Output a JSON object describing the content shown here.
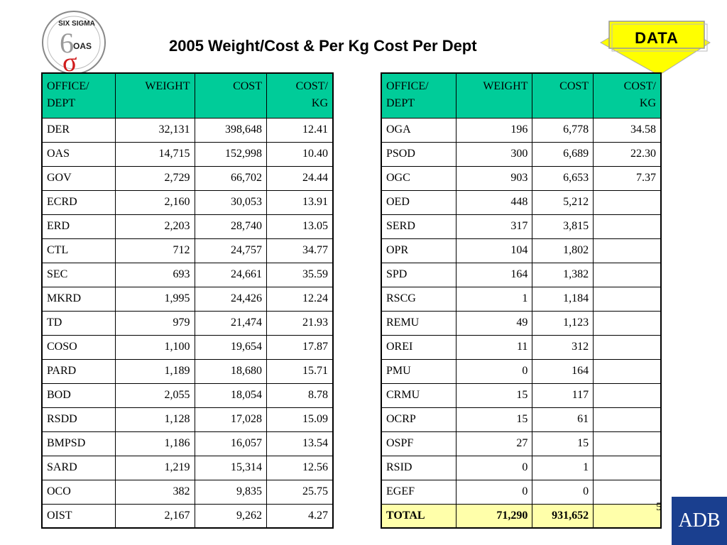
{
  "logo": {
    "top_text": "SIX SIGMA",
    "bottom_text": "OAS"
  },
  "title": "2005 Weight/Cost & Per Kg Cost Per Dept",
  "badge": {
    "label": "DATA",
    "color": "#ffff00"
  },
  "table_header": {
    "office_line1": "OFFICE/",
    "office_line2": "DEPT",
    "weight": "WEIGHT",
    "cost": "COST",
    "costkg_line1": "COST/",
    "costkg_line2": "KG"
  },
  "colors": {
    "header_bg": "#00cc99",
    "total_bg": "#ffffaa",
    "adb_bg": "#1a3f8f"
  },
  "left_table": [
    [
      "DER",
      "32,131",
      "398,648",
      "12.41"
    ],
    [
      "OAS",
      "14,715",
      "152,998",
      "10.40"
    ],
    [
      "GOV",
      "2,729",
      "66,702",
      "24.44"
    ],
    [
      "ECRD",
      "2,160",
      "30,053",
      "13.91"
    ],
    [
      "ERD",
      "2,203",
      "28,740",
      "13.05"
    ],
    [
      "CTL",
      "712",
      "24,757",
      "34.77"
    ],
    [
      "SEC",
      "693",
      "24,661",
      "35.59"
    ],
    [
      "MKRD",
      "1,995",
      "24,426",
      "12.24"
    ],
    [
      "TD",
      "979",
      "21,474",
      "21.93"
    ],
    [
      "COSO",
      "1,100",
      "19,654",
      "17.87"
    ],
    [
      "PARD",
      "1,189",
      "18,680",
      "15.71"
    ],
    [
      "BOD",
      "2,055",
      "18,054",
      "8.78"
    ],
    [
      "RSDD",
      "1,128",
      "17,028",
      "15.09"
    ],
    [
      "BMPSD",
      "1,186",
      "16,057",
      "13.54"
    ],
    [
      "SARD",
      "1,219",
      "15,314",
      "12.56"
    ],
    [
      "OCO",
      "382",
      "9,835",
      "25.75"
    ],
    [
      "OIST",
      "2,167",
      "9,262",
      "4.27"
    ]
  ],
  "right_table": [
    [
      "OGA",
      "196",
      "6,778",
      "34.58"
    ],
    [
      "PSOD",
      "300",
      "6,689",
      "22.30"
    ],
    [
      "OGC",
      "903",
      "6,653",
      "7.37"
    ],
    [
      "OED",
      "448",
      "5,212",
      ""
    ],
    [
      "SERD",
      "317",
      "3,815",
      ""
    ],
    [
      "OPR",
      "104",
      "1,802",
      ""
    ],
    [
      "SPD",
      "164",
      "1,382",
      ""
    ],
    [
      "RSCG",
      "1",
      "1,184",
      ""
    ],
    [
      "REMU",
      "49",
      "1,123",
      ""
    ],
    [
      "OREI",
      "11",
      "312",
      ""
    ],
    [
      "PMU",
      "0",
      "164",
      ""
    ],
    [
      "CRMU",
      "15",
      "117",
      ""
    ],
    [
      "OCRP",
      "15",
      "61",
      ""
    ],
    [
      "OSPF",
      "27",
      "15",
      ""
    ],
    [
      "RSID",
      "0",
      "1",
      ""
    ],
    [
      "EGEF",
      "0",
      "0",
      ""
    ]
  ],
  "total_row": [
    "TOTAL",
    "71,290",
    "931,652",
    ""
  ],
  "page_number": "5",
  "footer_logo": "ADB"
}
